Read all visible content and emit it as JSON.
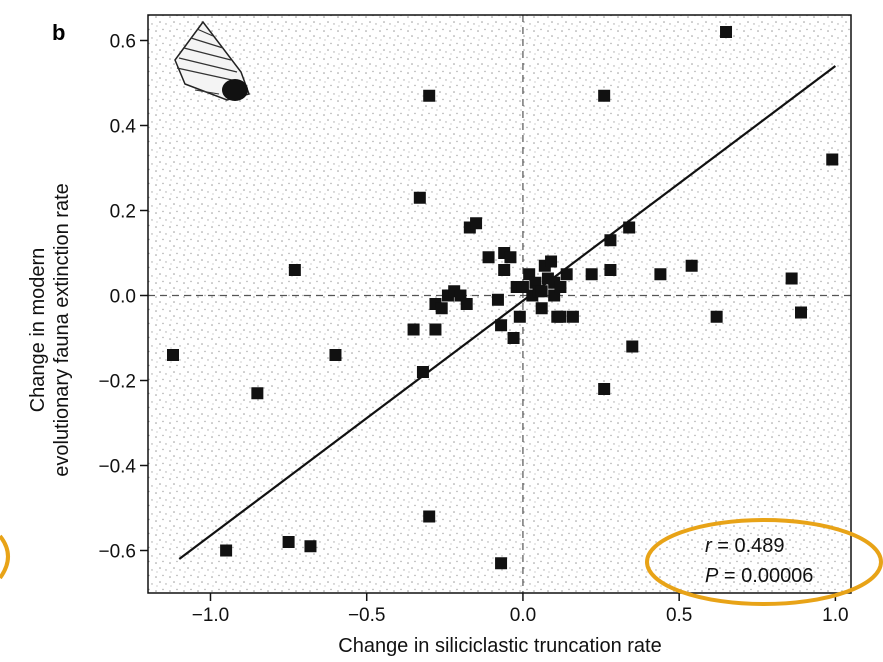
{
  "chart_data": {
    "type": "scatter",
    "panel_label": "b",
    "xlabel": "Change in siliciclastic truncation rate",
    "ylabel_line1": "Change in modern",
    "ylabel_line2": "evolutionary fauna extinction rate",
    "xlim": [
      -1.2,
      1.05
    ],
    "ylim": [
      -0.7,
      0.66
    ],
    "x_ticks": [
      -1.0,
      -0.5,
      0.0,
      0.5,
      1.0
    ],
    "x_tick_labels": [
      "−1.0",
      "−0.5",
      "0.0",
      "0.5",
      "1.0"
    ],
    "y_ticks": [
      0.6,
      0.4,
      0.2,
      0.0,
      -0.2,
      -0.4,
      -0.6
    ],
    "y_tick_labels": [
      "0.6",
      "0.4",
      "0.2",
      "0.0",
      "−0.2",
      "−0.4",
      "−0.6"
    ],
    "reference_lines": {
      "x": 0,
      "y": 0,
      "style": "dashed"
    },
    "regression_line": {
      "x": [
        -1.1,
        1.0
      ],
      "y": [
        -0.62,
        0.54
      ]
    },
    "annotation": {
      "r_symbol": "r",
      "r_text": " = 0.489",
      "p_symbol": "P",
      "p_text": " = 0.00006",
      "placement": "bottom-right",
      "highlight_color": "#e8a317"
    },
    "marker_color": "#111111",
    "background_style": "stippled",
    "series": [
      {
        "x": [
          -1.12,
          -0.95,
          -0.85,
          -0.75,
          -0.73,
          -0.68,
          -0.6,
          -0.35,
          -0.33,
          -0.32,
          -0.3,
          -0.3,
          -0.28,
          -0.28,
          -0.26,
          -0.24,
          -0.22,
          -0.2,
          -0.18,
          -0.17,
          -0.15,
          -0.11,
          -0.08,
          -0.07,
          -0.07,
          -0.06,
          -0.06,
          -0.04,
          -0.03,
          -0.02,
          -0.01,
          0.0,
          0.02,
          0.03,
          0.04,
          0.05,
          0.06,
          0.06,
          0.07,
          0.08,
          0.09,
          0.1,
          0.1,
          0.11,
          0.12,
          0.12,
          0.14,
          0.16,
          0.22,
          0.26,
          0.26,
          0.28,
          0.28,
          0.34,
          0.35,
          0.44,
          0.54,
          0.62,
          0.65,
          0.86,
          0.89,
          0.99
        ],
        "y": [
          -0.14,
          -0.6,
          -0.23,
          -0.58,
          0.06,
          -0.59,
          -0.14,
          -0.08,
          0.23,
          -0.18,
          0.47,
          -0.52,
          -0.02,
          -0.08,
          -0.03,
          0.0,
          0.01,
          0.0,
          -0.02,
          0.16,
          0.17,
          0.09,
          -0.01,
          -0.63,
          -0.07,
          0.1,
          0.06,
          0.09,
          -0.1,
          0.02,
          -0.05,
          0.02,
          0.05,
          0.0,
          0.03,
          0.01,
          0.01,
          -0.03,
          0.07,
          0.04,
          0.08,
          0.03,
          0.0,
          -0.05,
          0.02,
          -0.05,
          0.05,
          -0.05,
          0.05,
          0.47,
          -0.22,
          0.06,
          0.13,
          0.16,
          -0.12,
          0.05,
          0.07,
          -0.05,
          0.62,
          0.04,
          -0.04,
          0.32
        ]
      }
    ]
  }
}
